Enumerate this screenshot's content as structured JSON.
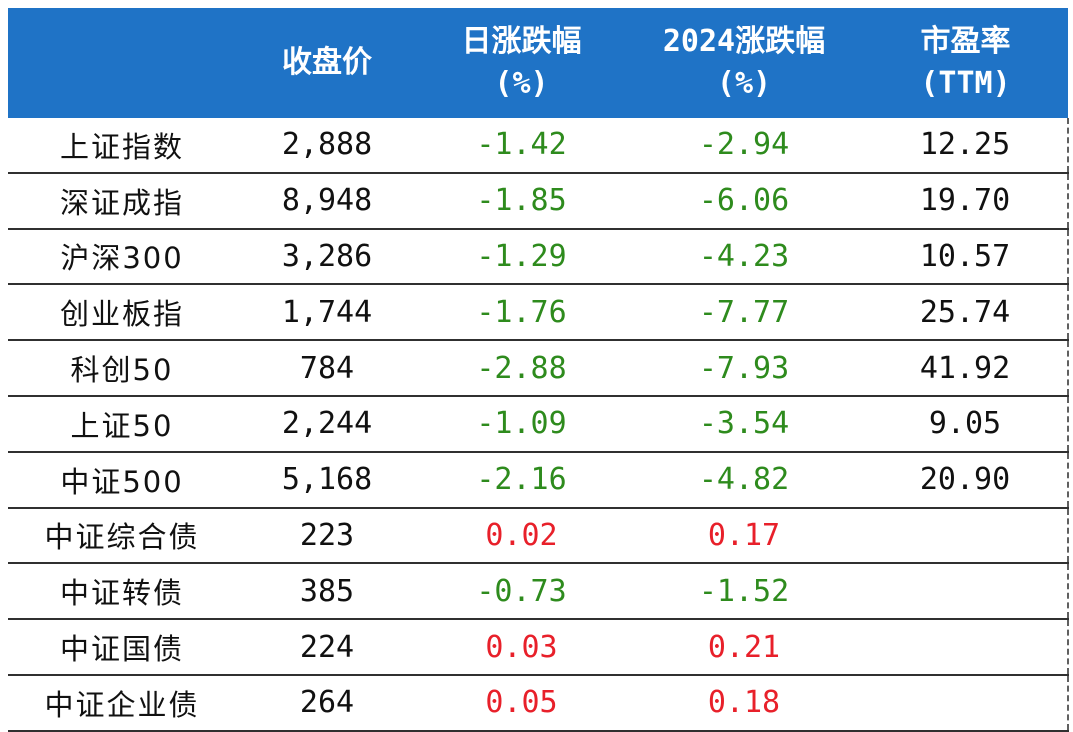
{
  "header": {
    "col0": "",
    "col1": "收盘价",
    "col2_line1": "日涨跌幅",
    "col2_line2": "(%)",
    "col3_line1": "2024涨跌幅",
    "col3_line2": "(%)",
    "col4_line1": "市盈率",
    "col4_line2": "(TTM)"
  },
  "rows": [
    {
      "name": "上证指数",
      "close": "2,888",
      "daily": "-1.42",
      "ytd": "-2.94",
      "pe": "12.25"
    },
    {
      "name": "深证成指",
      "close": "8,948",
      "daily": "-1.85",
      "ytd": "-6.06",
      "pe": "19.70"
    },
    {
      "name": "沪深300",
      "close": "3,286",
      "daily": "-1.29",
      "ytd": "-4.23",
      "pe": "10.57"
    },
    {
      "name": "创业板指",
      "close": "1,744",
      "daily": "-1.76",
      "ytd": "-7.77",
      "pe": "25.74"
    },
    {
      "name": "科创50",
      "close": "784",
      "daily": "-2.88",
      "ytd": "-7.93",
      "pe": "41.92"
    },
    {
      "name": "上证50",
      "close": "2,244",
      "daily": "-1.09",
      "ytd": "-3.54",
      "pe": "9.05"
    },
    {
      "name": "中证500",
      "close": "5,168",
      "daily": "-2.16",
      "ytd": "-4.82",
      "pe": "20.90"
    },
    {
      "name": "中证综合债",
      "close": "223",
      "daily": "0.02",
      "ytd": "0.17",
      "pe": ""
    },
    {
      "name": "中证转债",
      "close": "385",
      "daily": "-0.73",
      "ytd": "-1.52",
      "pe": ""
    },
    {
      "name": "中证国债",
      "close": "224",
      "daily": "0.03",
      "ytd": "0.21",
      "pe": ""
    },
    {
      "name": "中证企业债",
      "close": "264",
      "daily": "0.05",
      "ytd": "0.18",
      "pe": ""
    }
  ],
  "colors": {
    "header_bg": "#1f73c6",
    "negative": "#2e8b1d",
    "positive": "#e8202a"
  }
}
